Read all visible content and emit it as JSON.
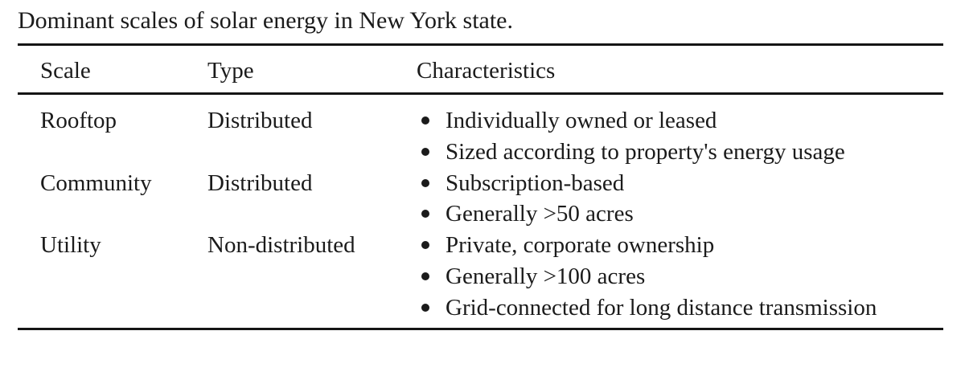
{
  "page": {
    "caption": "Dominant scales of solar energy in New York state."
  },
  "table": {
    "headers": {
      "scale": "Scale",
      "type": "Type",
      "characteristics": "Characteristics"
    },
    "rows": [
      {
        "scale": "Rooftop",
        "type": "Distributed",
        "characteristics": [
          "Individually owned or leased",
          "Sized according to property's energy usage"
        ]
      },
      {
        "scale": "Community",
        "type": "Distributed",
        "characteristics": [
          "Subscription-based",
          "Generally >50 acres"
        ]
      },
      {
        "scale": "Utility",
        "type": "Non-distributed",
        "characteristics": [
          "Private, corporate ownership",
          "Generally >100 acres",
          "Grid-connected for long distance transmission"
        ]
      }
    ]
  },
  "colors": {
    "text": "#1b1b1b",
    "rule": "#151515",
    "background": "#ffffff"
  }
}
